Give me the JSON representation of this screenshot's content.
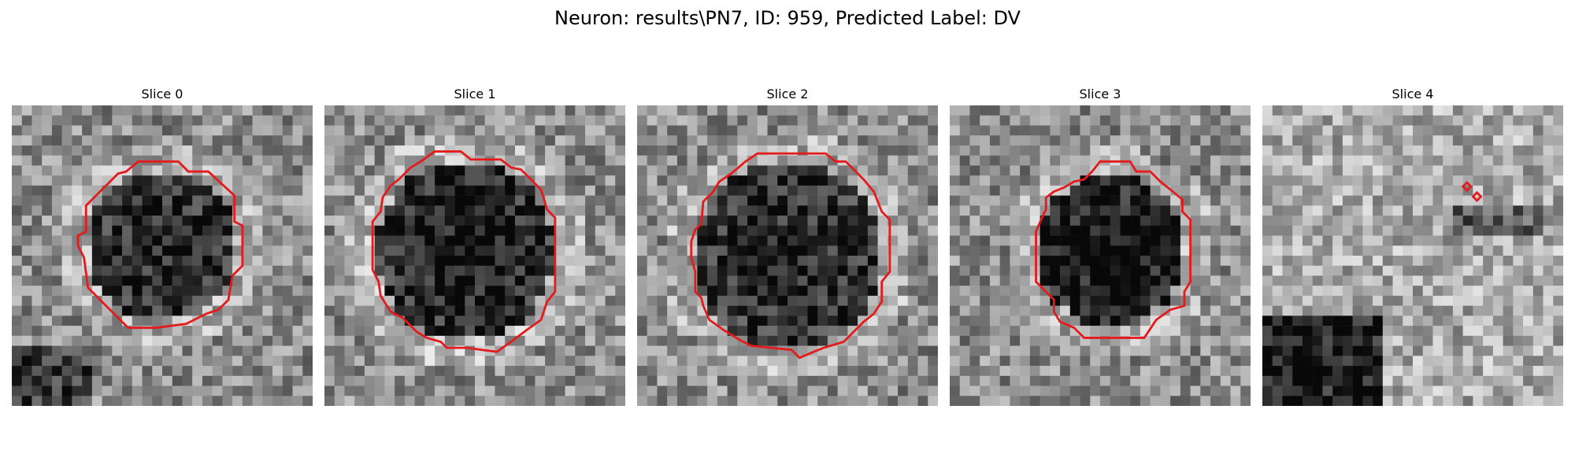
{
  "figure": {
    "title": "Neuron: results\\PN7, ID: 959, Predicted Label: DV",
    "contour_color": "#e41a1c"
  },
  "panels": [
    {
      "title": "Slice 0",
      "background_tone": "mixed grayscale, dark center"
    },
    {
      "title": "Slice 1",
      "background_tone": "mixed grayscale, dark center"
    },
    {
      "title": "Slice 2",
      "background_tone": "mixed grayscale, dark center"
    },
    {
      "title": "Slice 3",
      "background_tone": "mixed grayscale, dark center"
    },
    {
      "title": "Slice 4",
      "background_tone": "mostly light, dark lower-left"
    }
  ]
}
